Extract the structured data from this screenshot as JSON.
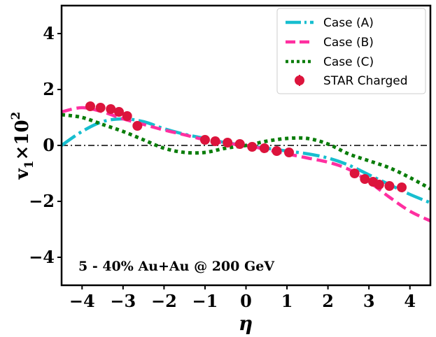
{
  "chart_data": {
    "type": "line",
    "title": "",
    "xlabel": "η",
    "ylabel_main": "v",
    "ylabel_sub": "1",
    "ylabel_times": "×10",
    "ylabel_sup": "2",
    "xlim": [
      -4.5,
      4.5
    ],
    "ylim": [
      -5,
      5
    ],
    "xticks": [
      -4,
      -3,
      -2,
      -1,
      0,
      1,
      2,
      3,
      4
    ],
    "xtick_labels": [
      "−4",
      "−3",
      "−2",
      "−1",
      "0",
      "1",
      "2",
      "3",
      "4"
    ],
    "yticks": [
      -4,
      -2,
      0,
      2,
      4
    ],
    "ytick_labels": [
      "−4",
      "−2",
      "0",
      "2",
      "4"
    ],
    "grid": false,
    "legend_position": "top-right",
    "annotation": "5 - 40% Au+Au @ 200 GeV",
    "series": [
      {
        "name": "Case (A)",
        "style": "dashdot",
        "color": "#17becf",
        "x": [
          -4.5,
          -4.0,
          -3.5,
          -3.0,
          -2.5,
          -2.0,
          -1.5,
          -1.0,
          -0.5,
          0.0,
          0.5,
          1.0,
          1.5,
          2.0,
          2.5,
          3.0,
          3.5,
          4.0,
          4.5
        ],
        "y": [
          0.0,
          0.5,
          0.85,
          0.95,
          0.85,
          0.6,
          0.4,
          0.25,
          0.1,
          0.0,
          -0.1,
          -0.2,
          -0.3,
          -0.45,
          -0.7,
          -1.05,
          -1.4,
          -1.75,
          -2.05
        ]
      },
      {
        "name": "Case (B)",
        "style": "dashed",
        "color": "#ff2fa0",
        "x": [
          -4.5,
          -4.0,
          -3.5,
          -3.0,
          -2.5,
          -2.0,
          -1.5,
          -1.0,
          -0.5,
          0.0,
          0.5,
          1.0,
          1.5,
          2.0,
          2.5,
          3.0,
          3.5,
          4.0,
          4.5
        ],
        "y": [
          1.2,
          1.35,
          1.2,
          0.95,
          0.75,
          0.55,
          0.38,
          0.2,
          0.08,
          0.0,
          -0.15,
          -0.3,
          -0.45,
          -0.6,
          -0.85,
          -1.3,
          -1.85,
          -2.35,
          -2.7
        ]
      },
      {
        "name": "Case (C)",
        "style": "dotted",
        "color": "#0a7d0a",
        "x": [
          -4.5,
          -4.0,
          -3.5,
          -3.0,
          -2.5,
          -2.0,
          -1.5,
          -1.0,
          -0.5,
          0.0,
          0.5,
          1.0,
          1.5,
          2.0,
          2.5,
          3.0,
          3.5,
          4.0,
          4.5
        ],
        "y": [
          1.1,
          1.0,
          0.75,
          0.5,
          0.2,
          -0.1,
          -0.25,
          -0.25,
          -0.1,
          0.0,
          0.15,
          0.25,
          0.25,
          0.05,
          -0.3,
          -0.55,
          -0.8,
          -1.15,
          -1.55
        ]
      }
    ],
    "data_series": {
      "name": "STAR Charged",
      "style": "markers",
      "color": "#dc143c",
      "x": [
        -3.8,
        -3.55,
        -3.3,
        -3.1,
        -2.9,
        -2.65,
        -1.0,
        -0.75,
        -0.45,
        -0.15,
        0.15,
        0.45,
        0.75,
        1.05,
        2.65,
        2.9,
        3.1,
        3.25,
        3.5,
        3.8
      ],
      "y": [
        1.4,
        1.35,
        1.3,
        1.2,
        1.05,
        0.7,
        0.2,
        0.15,
        0.1,
        0.05,
        -0.05,
        -0.1,
        -0.2,
        -0.25,
        -1.0,
        -1.2,
        -1.3,
        -1.4,
        -1.45,
        -1.5
      ]
    }
  }
}
